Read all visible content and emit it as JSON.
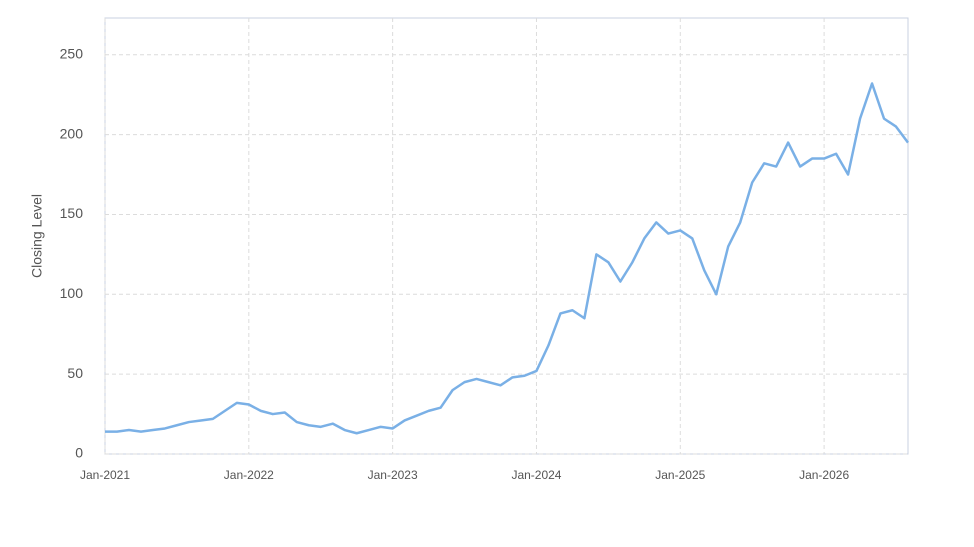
{
  "chart_data": {
    "type": "line",
    "y_label": "Closing Level",
    "x": [
      "2021-01",
      "2021-02",
      "2021-03",
      "2021-04",
      "2021-05",
      "2021-06",
      "2021-07",
      "2021-08",
      "2021-09",
      "2021-10",
      "2021-11",
      "2021-12",
      "2022-01",
      "2022-02",
      "2022-03",
      "2022-04",
      "2022-05",
      "2022-06",
      "2022-07",
      "2022-08",
      "2022-09",
      "2022-10",
      "2022-11",
      "2022-12",
      "2023-01",
      "2023-02",
      "2023-03",
      "2023-04",
      "2023-05",
      "2023-06",
      "2023-07",
      "2023-08",
      "2023-09",
      "2023-10",
      "2023-11",
      "2023-12",
      "2024-01",
      "2024-02",
      "2024-03",
      "2024-04",
      "2024-05",
      "2024-06",
      "2024-07",
      "2024-08",
      "2024-09",
      "2024-10",
      "2024-11",
      "2024-12",
      "2025-01",
      "2025-02",
      "2025-03",
      "2025-04",
      "2025-05",
      "2025-06",
      "2025-07",
      "2025-08",
      "2025-09",
      "2025-10",
      "2025-11",
      "2025-12",
      "2026-01",
      "2026-02",
      "2026-03",
      "2026-04",
      "2026-05",
      "2026-06",
      "2026-07",
      "2026-08"
    ],
    "series": [
      {
        "color": "#7ab0e6",
        "values": [
          14,
          14,
          15,
          14,
          15,
          16,
          18,
          20,
          21,
          22,
          27,
          32,
          31,
          27,
          25,
          26,
          20,
          18,
          17,
          19,
          15,
          13,
          15,
          17,
          16,
          21,
          24,
          27,
          29,
          40,
          45,
          47,
          45,
          43,
          48,
          49,
          52,
          68,
          88,
          90,
          85,
          125,
          120,
          108,
          120,
          135,
          145,
          138,
          140,
          135,
          115,
          100,
          130,
          145,
          170,
          182,
          180,
          195,
          180,
          185,
          185,
          188,
          175,
          210,
          232,
          210,
          205,
          195
        ]
      }
    ],
    "xlim": [
      "2021-01",
      "2026-08"
    ],
    "xticks": [
      {
        "value": "2021-01",
        "label": "Jan-2021"
      },
      {
        "value": "2022-01",
        "label": "Jan-2022"
      },
      {
        "value": "2023-01",
        "label": "Jan-2023"
      },
      {
        "value": "2024-01",
        "label": "Jan-2024"
      },
      {
        "value": "2025-01",
        "label": "Jan-2025"
      },
      {
        "value": "2026-01",
        "label": "Jan-2026"
      }
    ],
    "ylim": [
      0,
      273
    ],
    "yticks": [
      0,
      50,
      100,
      150,
      200,
      250
    ],
    "grid": true
  }
}
